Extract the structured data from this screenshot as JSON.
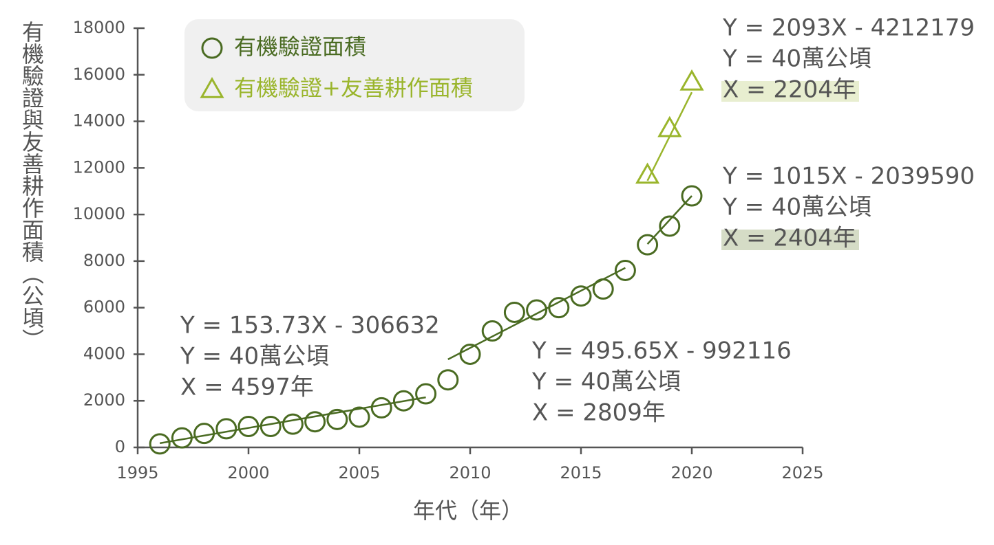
{
  "chart_data": {
    "type": "scatter",
    "xlabel": "年代（年）",
    "ylabel": "有機驗證與友善耕作面積（公頃）",
    "xlim": [
      1995,
      2025
    ],
    "xticks": [
      1995,
      2000,
      2005,
      2010,
      2015,
      2020,
      2025
    ],
    "ylim": [
      0,
      18000
    ],
    "yticks": [
      0,
      2000,
      4000,
      6000,
      8000,
      10000,
      12000,
      14000,
      16000,
      18000
    ],
    "series": [
      {
        "name": "有機驗證面積",
        "marker": "circle",
        "color": "#4a6b22",
        "x": [
          1996,
          1997,
          1998,
          1999,
          2000,
          2001,
          2002,
          2003,
          2004,
          2005,
          2006,
          2007,
          2008,
          2009,
          2010,
          2011,
          2012,
          2013,
          2014,
          2015,
          2016,
          2017,
          2018,
          2019,
          2020
        ],
        "values": [
          150,
          410,
          600,
          800,
          900,
          900,
          1000,
          1100,
          1200,
          1300,
          1700,
          2000,
          2300,
          2900,
          4000,
          5000,
          5800,
          5900,
          6000,
          6500,
          6800,
          7600,
          8700,
          9500,
          10800
        ]
      },
      {
        "name": "有機驗證+友善耕作面積",
        "marker": "triangle",
        "color": "#9ab52c",
        "x": [
          2018,
          2019,
          2020
        ],
        "values": [
          11700,
          13700,
          15700
        ]
      }
    ],
    "trend_lines": [
      {
        "color": "#4a6b22",
        "x": [
          1996,
          2008
        ],
        "values": [
          180,
          2150
        ]
      },
      {
        "color": "#4a6b22",
        "x": [
          2009,
          2017
        ],
        "values": [
          3780,
          7710
        ]
      },
      {
        "color": "#4a6b22",
        "x": [
          2018,
          2020
        ],
        "values": [
          8730,
          10800
        ]
      },
      {
        "color": "#9ab52c",
        "x": [
          2018,
          2020
        ],
        "values": [
          11450,
          15250
        ]
      }
    ],
    "annotations": [
      {
        "lines": [
          {
            "text": "Y = 2093X - 4212179"
          },
          {
            "text": "Y = 40萬公頃"
          },
          {
            "text": "X = 2204年",
            "highlight": "#e8eed0"
          }
        ]
      },
      {
        "lines": [
          {
            "text": "Y = 1015X - 2039590"
          },
          {
            "text": "Y = 40萬公頃"
          },
          {
            "text": "X = 2404年",
            "highlight": "#d5dcc6"
          }
        ]
      },
      {
        "lines": [
          {
            "text": "Y = 153.73X - 306632"
          },
          {
            "text": "Y = 40萬公頃"
          },
          {
            "text": "X = 4597年"
          }
        ]
      },
      {
        "lines": [
          {
            "text": "Y = 495.65X - 992116"
          },
          {
            "text": "Y = 40萬公頃"
          },
          {
            "text": "X = 2809年"
          }
        ]
      }
    ]
  }
}
